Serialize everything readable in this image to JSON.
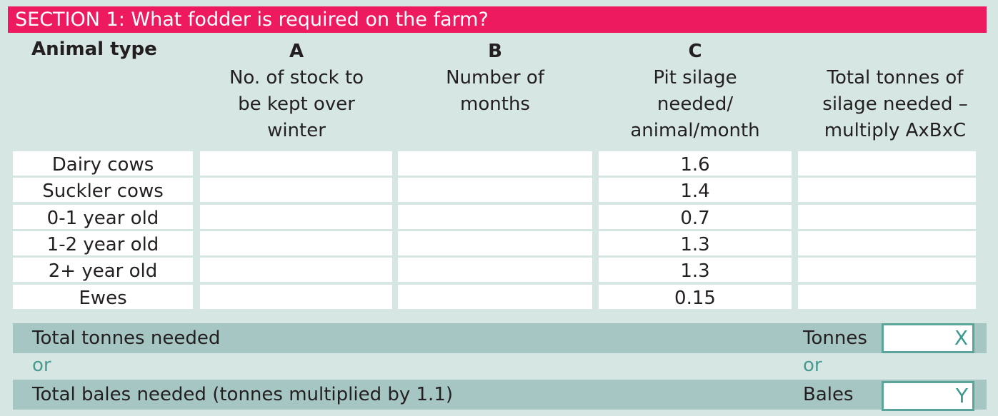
{
  "header": {
    "title": "SECTION 1: What fodder is required on the farm?"
  },
  "columns": {
    "animal": "Animal type",
    "a": {
      "letter": "A",
      "lines": [
        "No. of stock to",
        "be kept over",
        "winter"
      ]
    },
    "b": {
      "letter": "B",
      "lines": [
        "Number of",
        "months"
      ]
    },
    "c": {
      "letter": "C",
      "lines": [
        "Pit silage",
        "needed/",
        "animal/month"
      ]
    },
    "d": {
      "lines": [
        "Total tonnes of",
        "silage needed –",
        "multiply AxBxC"
      ]
    }
  },
  "rows": [
    {
      "animal": "Dairy cows",
      "c": "1.6"
    },
    {
      "animal": "Suckler cows",
      "c": "1.4"
    },
    {
      "animal": "0-1 year old",
      "c": "0.7"
    },
    {
      "animal": "1-2 year old",
      "c": "1.3"
    },
    {
      "animal": "2+ year old",
      "c": "1.3"
    },
    {
      "animal": "Ewes",
      "c": "0.15"
    }
  ],
  "totals": {
    "tonnes_label": "Total tonnes needed",
    "tonnes_unit": "Tonnes",
    "tonnes_box": "X",
    "or": "or",
    "bales_label": "Total bales needed (tonnes multiplied by 1.1)",
    "bales_unit": "Bales",
    "bales_box": "Y"
  }
}
